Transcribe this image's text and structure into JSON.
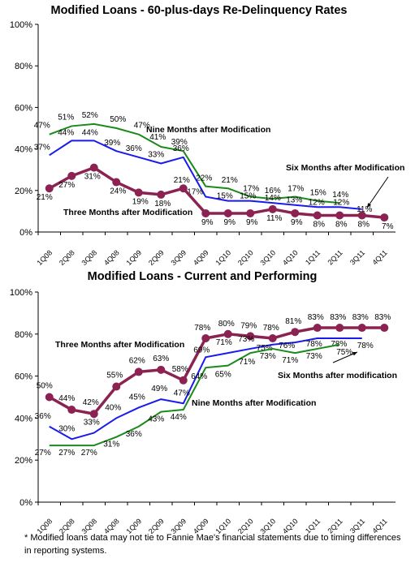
{
  "chart_data": [
    {
      "type": "line",
      "title": "Modified Loans - 60-plus-days Re-Delinquency Rates",
      "categories": [
        "1Q08",
        "2Q08",
        "3Q08",
        "4Q08",
        "1Q09",
        "2Q09",
        "3Q09",
        "4Q09",
        "1Q10",
        "2Q10",
        "3Q10",
        "4Q10",
        "1Q11",
        "2Q11",
        "3Q11",
        "4Q11"
      ],
      "y_ticks": [
        "0%",
        "20%",
        "40%",
        "60%",
        "80%",
        "100%"
      ],
      "ylim": [
        0,
        100
      ],
      "grid": false,
      "series": [
        {
          "name": "Nine Months after Modification",
          "color": "#1a8a1a",
          "values": [
            47,
            51,
            52,
            50,
            47,
            41,
            39,
            22,
            21,
            17,
            16,
            17,
            15,
            14,
            null,
            null
          ],
          "labels": [
            "47%",
            "51%",
            "52%",
            "50%",
            "47%",
            "41%",
            "39%",
            "22%",
            "21%",
            "17%",
            "16%",
            "17%",
            "15%",
            "14%",
            "",
            ""
          ]
        },
        {
          "name": "Six Months after Modification",
          "color": "#1a1aee",
          "values": [
            37,
            44,
            44,
            39,
            36,
            33,
            36,
            17,
            15,
            15,
            14,
            13,
            12,
            12,
            11,
            null
          ],
          "labels": [
            "37%",
            "44%",
            "44%",
            "39%",
            "36%",
            "33%",
            "36%",
            "17%",
            "15%",
            "15%",
            "14%",
            "13%",
            "12%",
            "12%",
            "11%",
            ""
          ]
        },
        {
          "name": "Three Months after Modification",
          "color": "#8b2252",
          "values": [
            21,
            27,
            31,
            24,
            19,
            18,
            21,
            9,
            9,
            9,
            11,
            9,
            8,
            8,
            8,
            7
          ],
          "labels": [
            "21%",
            "27%",
            "31%",
            "24%",
            "19%",
            "18%",
            "21%",
            "9%",
            "9%",
            "9%",
            "11%",
            "9%",
            "8%",
            "8%",
            "8%",
            "7%"
          ]
        }
      ]
    },
    {
      "type": "line",
      "title": "Modified Loans - Current and Performing",
      "categories": [
        "1Q08",
        "2Q08",
        "3Q08",
        "4Q08",
        "1Q09",
        "2Q09",
        "3Q09",
        "4Q09",
        "1Q10",
        "2Q10",
        "3Q10",
        "4Q10",
        "1Q11",
        "2Q11",
        "3Q11",
        "4Q11"
      ],
      "y_ticks": [
        "0%",
        "20%",
        "40%",
        "60%",
        "80%",
        "100%"
      ],
      "ylim": [
        0,
        100
      ],
      "grid": false,
      "series": [
        {
          "name": "Three Months after Modification",
          "color": "#8b2252",
          "values": [
            50,
            44,
            42,
            55,
            62,
            63,
            58,
            78,
            80,
            79,
            78,
            81,
            83,
            83,
            83,
            83
          ],
          "labels": [
            "50%",
            "44%",
            "42%",
            "55%",
            "62%",
            "63%",
            "58%",
            "78%",
            "80%",
            "79%",
            "78%",
            "81%",
            "83%",
            "83%",
            "83%",
            "83%"
          ]
        },
        {
          "name": "Six Months after modification",
          "color": "#1a1aee",
          "values": [
            36,
            30,
            33,
            40,
            45,
            49,
            47,
            69,
            71,
            73,
            75,
            76,
            78,
            78,
            78,
            null
          ],
          "labels": [
            "36%",
            "30%",
            "33%",
            "40%",
            "45%",
            "49%",
            "47%",
            "69%",
            "71%",
            "73%",
            "75%",
            "76%",
            "78%",
            "78%",
            "78%",
            ""
          ]
        },
        {
          "name": "Nine Months after Modification",
          "color": "#1a8a1a",
          "values": [
            27,
            27,
            27,
            31,
            36,
            43,
            44,
            64,
            65,
            71,
            73,
            71,
            73,
            75,
            null,
            null
          ],
          "labels": [
            "27%",
            "27%",
            "27%",
            "31%",
            "36%",
            "43%",
            "44%",
            "64%",
            "65%",
            "71%",
            "73%",
            "71%",
            "73%",
            "75%",
            "",
            ""
          ]
        }
      ]
    }
  ],
  "footnote": "* Modified loans data may not tie to Fannie Mae's financial statements due to timing differences in reporting systems."
}
